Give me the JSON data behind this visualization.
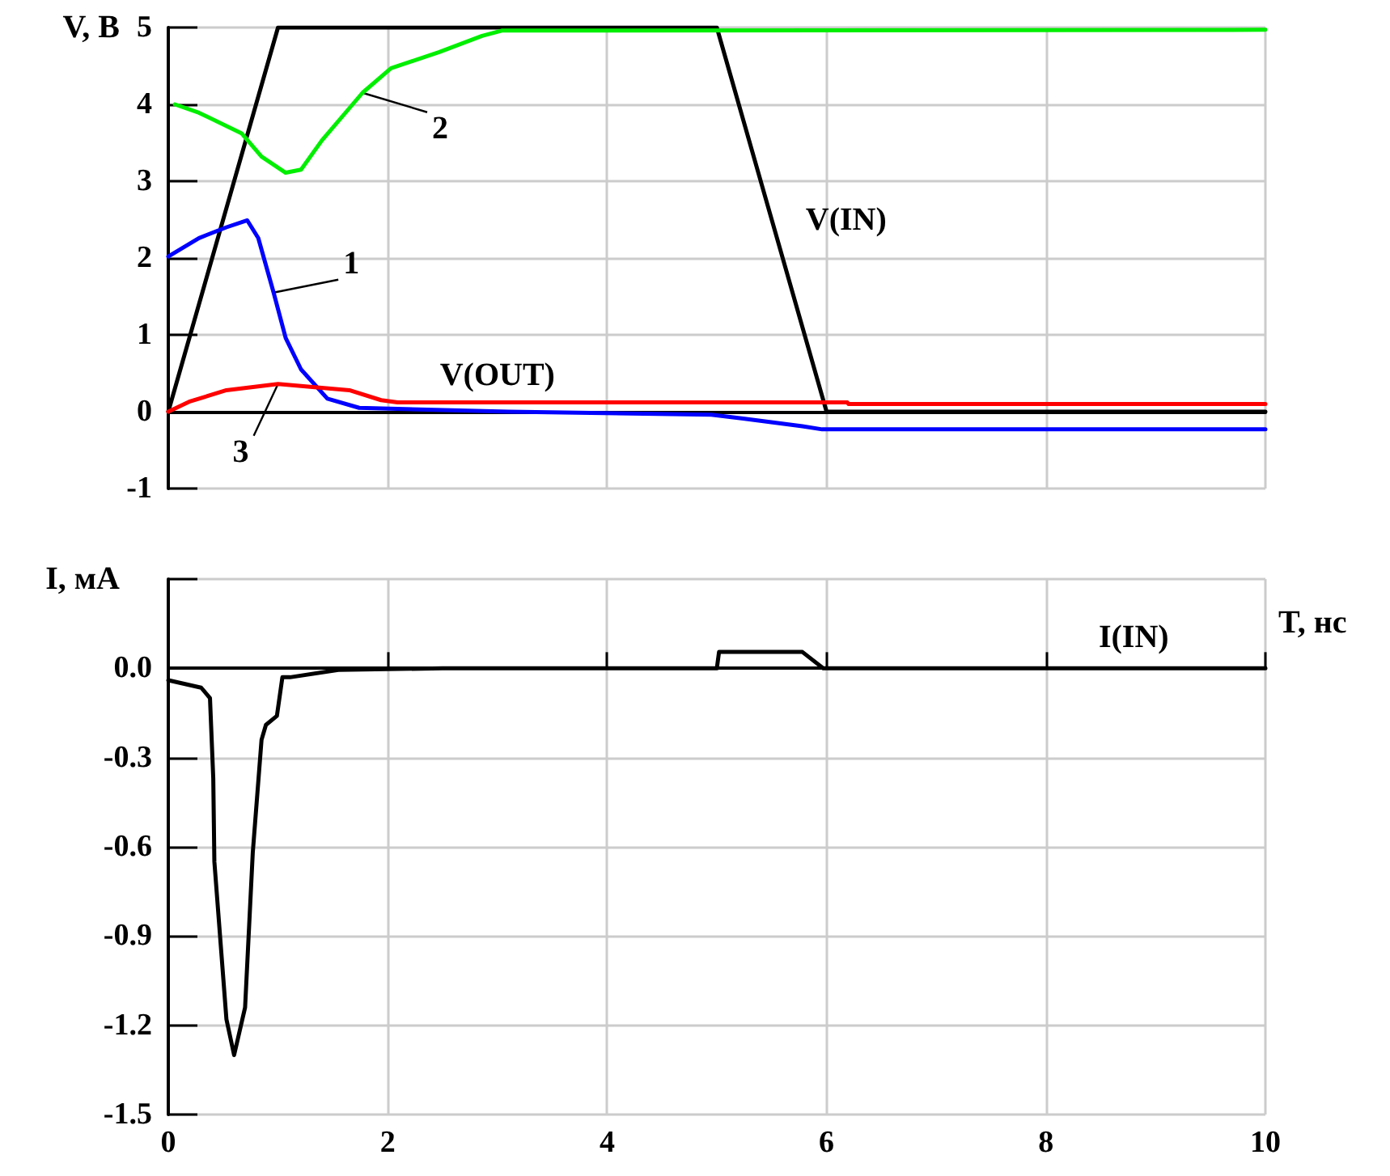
{
  "chart_data": [
    {
      "type": "line",
      "ylabel": "V, В",
      "xlim": [
        0,
        10
      ],
      "xticks": [
        0,
        2,
        4,
        6,
        8,
        10
      ],
      "ylim": [
        -1,
        5
      ],
      "yticks": [
        -1,
        0,
        1,
        2,
        3,
        4,
        5
      ],
      "grid": true,
      "tick_labels": "y",
      "series": [
        {
          "color": "#000000",
          "x": [
            0,
            1,
            5,
            6,
            10
          ],
          "values": [
            0,
            5,
            5,
            0,
            0
          ]
        },
        {
          "color": "#0000ff",
          "x": [
            0,
            0.28,
            0.53,
            0.72,
            0.82,
            0.96,
            1.07,
            1.21,
            1.45,
            1.74,
            3.1,
            4.95,
            5.24,
            5.78,
            5.96,
            10
          ],
          "values": [
            2.02,
            2.26,
            2.4,
            2.49,
            2.26,
            1.55,
            0.96,
            0.55,
            0.17,
            0.05,
            0,
            -0.04,
            -0.09,
            -0.19,
            -0.23,
            -0.23
          ]
        },
        {
          "color": "#00ee00",
          "x": [
            0.06,
            0.28,
            0.67,
            0.85,
            1.07,
            1.21,
            1.4,
            1.77,
            2.03,
            2.47,
            2.86,
            3.04,
            10
          ],
          "values": [
            4,
            3.89,
            3.62,
            3.32,
            3.11,
            3.15,
            3.53,
            4.15,
            4.47,
            4.68,
            4.89,
            4.96,
            4.97
          ]
        },
        {
          "color": "#ff0000",
          "x": [
            0,
            0.19,
            0.53,
            1,
            1.65,
            1.94,
            2.09,
            6.19,
            6.2,
            10
          ],
          "values": [
            0,
            0.13,
            0.28,
            0.36,
            0.28,
            0.15,
            0.12,
            0.12,
            0.1,
            0.1
          ]
        }
      ],
      "annotations": [
        {
          "text": "V(IN)",
          "x": 5.5,
          "y": 2.5
        },
        {
          "text": "V(OUT)",
          "x": 3,
          "y": 0.12
        },
        {
          "text": "1",
          "x": 0.96,
          "y": 1.55
        },
        {
          "text": "2",
          "x": 1.77,
          "y": 4.15
        },
        {
          "text": "3",
          "x": 1,
          "y": 0.36
        }
      ]
    },
    {
      "type": "line",
      "ylabel": "I, мА",
      "xlabel": "T, нс",
      "xlim": [
        0,
        10
      ],
      "xticks": [
        0,
        2,
        4,
        6,
        8,
        10
      ],
      "ylim": [
        -1.5,
        0.3
      ],
      "yticks": [
        {
          "value": -1.5,
          "label": "-1.5"
        },
        {
          "value": -1.2,
          "label": "-1.2"
        },
        {
          "value": -0.9,
          "label": "-0.9"
        },
        {
          "value": -0.6,
          "label": "-0.6"
        },
        {
          "value": -0.3,
          "label": "-0.3"
        },
        {
          "value": 0,
          "label": "0.0"
        },
        {
          "value": 0.3,
          "label": null
        }
      ],
      "grid": true,
      "series": [
        {
          "color": "#000000",
          "x": [
            0,
            0.3,
            0.38,
            0.41,
            0.42,
            0.53,
            0.6,
            0.7,
            0.77,
            0.85,
            0.89,
            0.99,
            1.04,
            1.11,
            1.55,
            2.5,
            5,
            5.02,
            5.78,
            5.97,
            10
          ],
          "values": [
            -0.04,
            -0.065,
            -0.1,
            -0.37,
            -0.65,
            -1.18,
            -1.3,
            -1.14,
            -0.62,
            -0.24,
            -0.19,
            -0.16,
            -0.03,
            -0.03,
            -0.005,
            0,
            0,
            0.055,
            0.055,
            0,
            0
          ]
        }
      ],
      "annotations": [
        {
          "text": "I(IN)",
          "x": 8.8,
          "y": 0
        }
      ]
    }
  ]
}
